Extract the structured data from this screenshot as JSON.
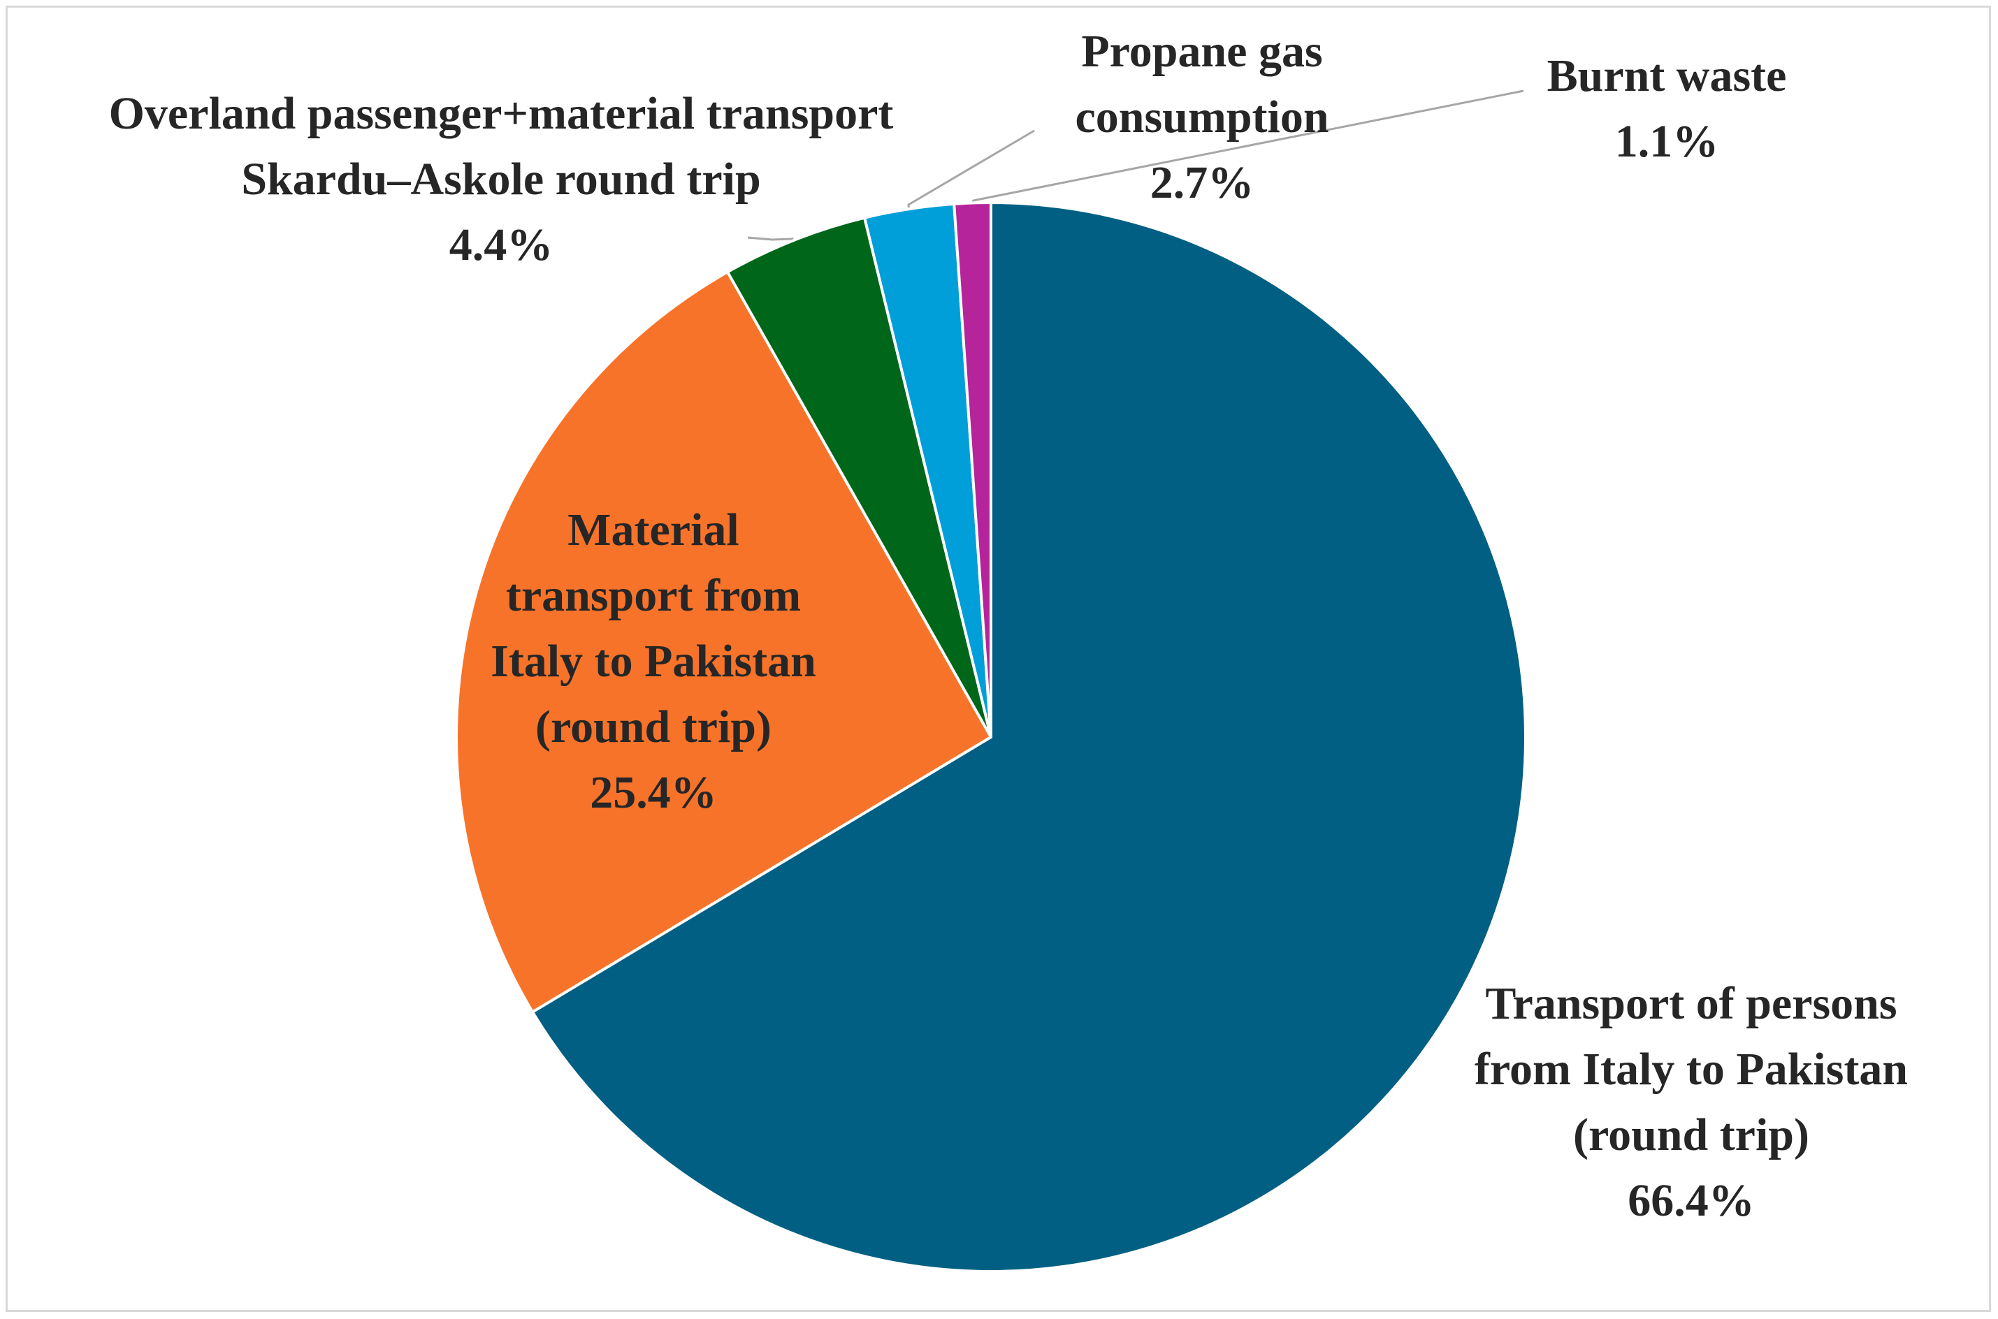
{
  "chart_data": {
    "type": "pie",
    "start_angle_deg": 0,
    "direction": "clockwise",
    "slices": [
      {
        "name": "Transport of persons from Italy to Pakistan (round trip)",
        "label_lines": [
          "Transport of persons",
          "from Italy to Pakistan",
          "(round trip)"
        ],
        "value": 66.4,
        "value_label": "66.4%",
        "color": "#005f83"
      },
      {
        "name": "Material transport from Italy to Pakistan (round trip)",
        "label_lines": [
          "Material",
          "transport from",
          "Italy to Pakistan",
          "(round trip)"
        ],
        "value": 25.4,
        "value_label": "25.4%",
        "color": "#f8732a"
      },
      {
        "name": "Overland passenger+material transport Skardu–Askole round trip",
        "label_lines": [
          "Overland passenger+material transport",
          "Skardu–Askole round trip"
        ],
        "value": 4.4,
        "value_label": "4.4%",
        "color": "#00661a"
      },
      {
        "name": "Propane gas consumption",
        "label_lines": [
          "Propane gas",
          "consumption"
        ],
        "value": 2.7,
        "value_label": "2.7%",
        "color": "#009fda"
      },
      {
        "name": "Burnt waste",
        "label_lines": [
          "Burnt waste"
        ],
        "value": 1.1,
        "value_label": "1.1%",
        "color": "#b5249a"
      }
    ]
  }
}
